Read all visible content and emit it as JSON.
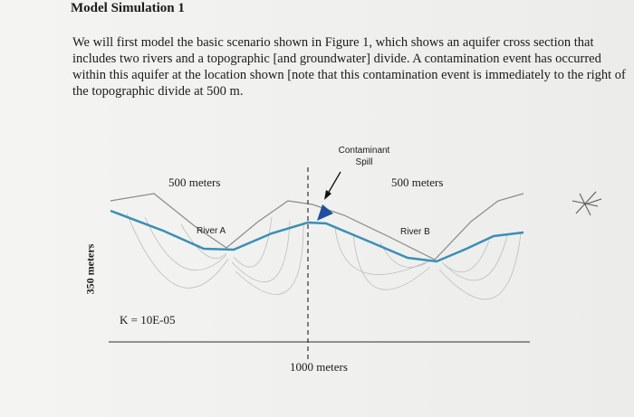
{
  "header": {
    "title": "Model Simulation 1"
  },
  "body": {
    "lines": [
      "We will first model the basic scenario shown in Figure 1, which shows an aquifer cross section that",
      "includes two rivers and a topographic [and groundwater] divide. A contamination event has occurred",
      "within this aquifer at the location shown [note that this contamination event is immediately to the right of",
      "the topographic divide at 500 m."
    ]
  },
  "diagram": {
    "spill_label": "Contaminant Spill",
    "left_width": "500 meters",
    "right_width": "500 meters",
    "river_a": "River A",
    "river_b": "River B",
    "depth": "350 meters",
    "conductivity": "K = 10E-05",
    "length": "1000 meters"
  }
}
